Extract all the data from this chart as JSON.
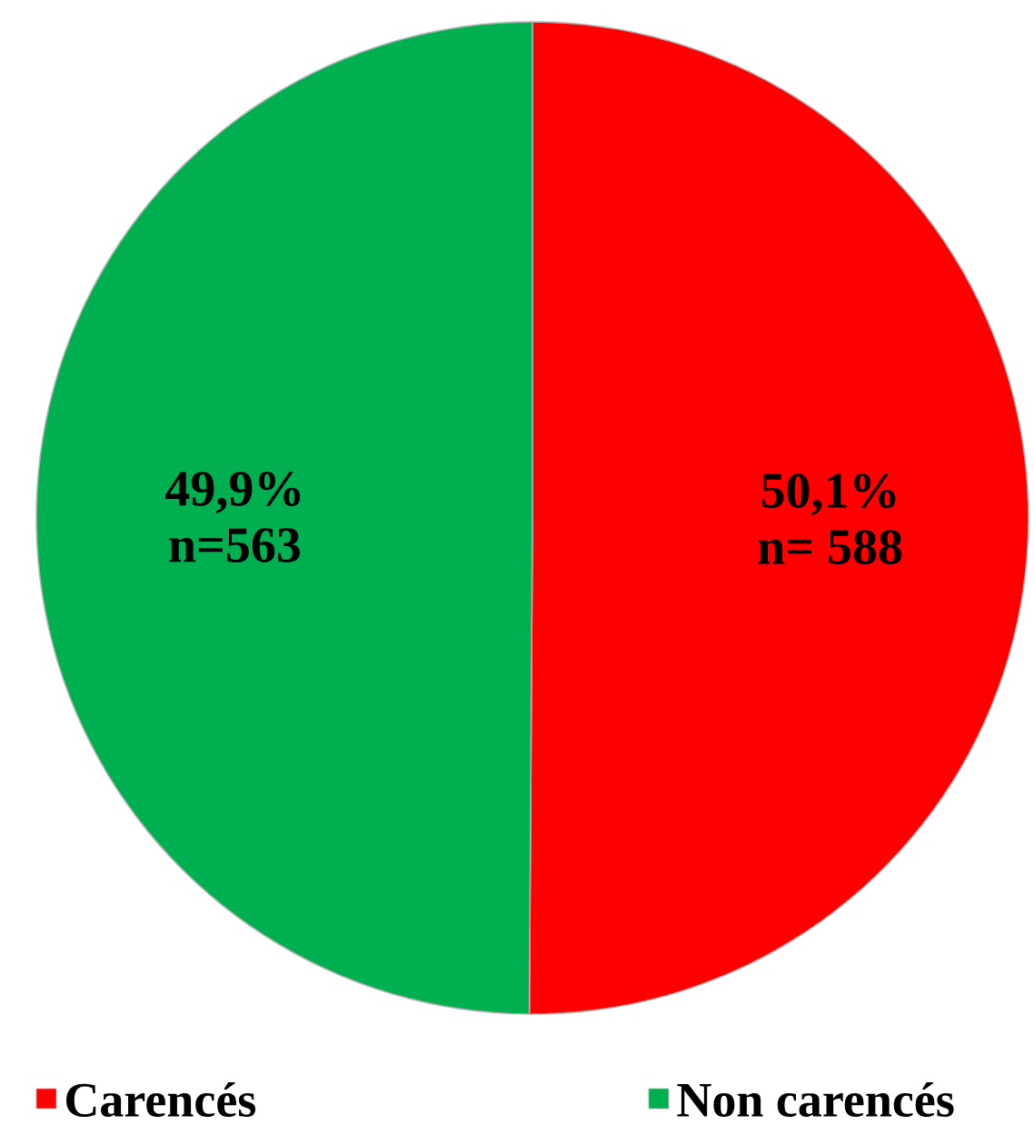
{
  "chart_data": {
    "type": "pie",
    "categories": [
      "Carencés",
      "Non carencés"
    ],
    "values": [
      50.1,
      49.9
    ],
    "colors": [
      "#ff0000",
      "#00b050"
    ],
    "value_labels": [
      "50,1%",
      "49,9%"
    ],
    "annotations": [
      "n= 588",
      "n=563"
    ],
    "legend": "bottom"
  }
}
